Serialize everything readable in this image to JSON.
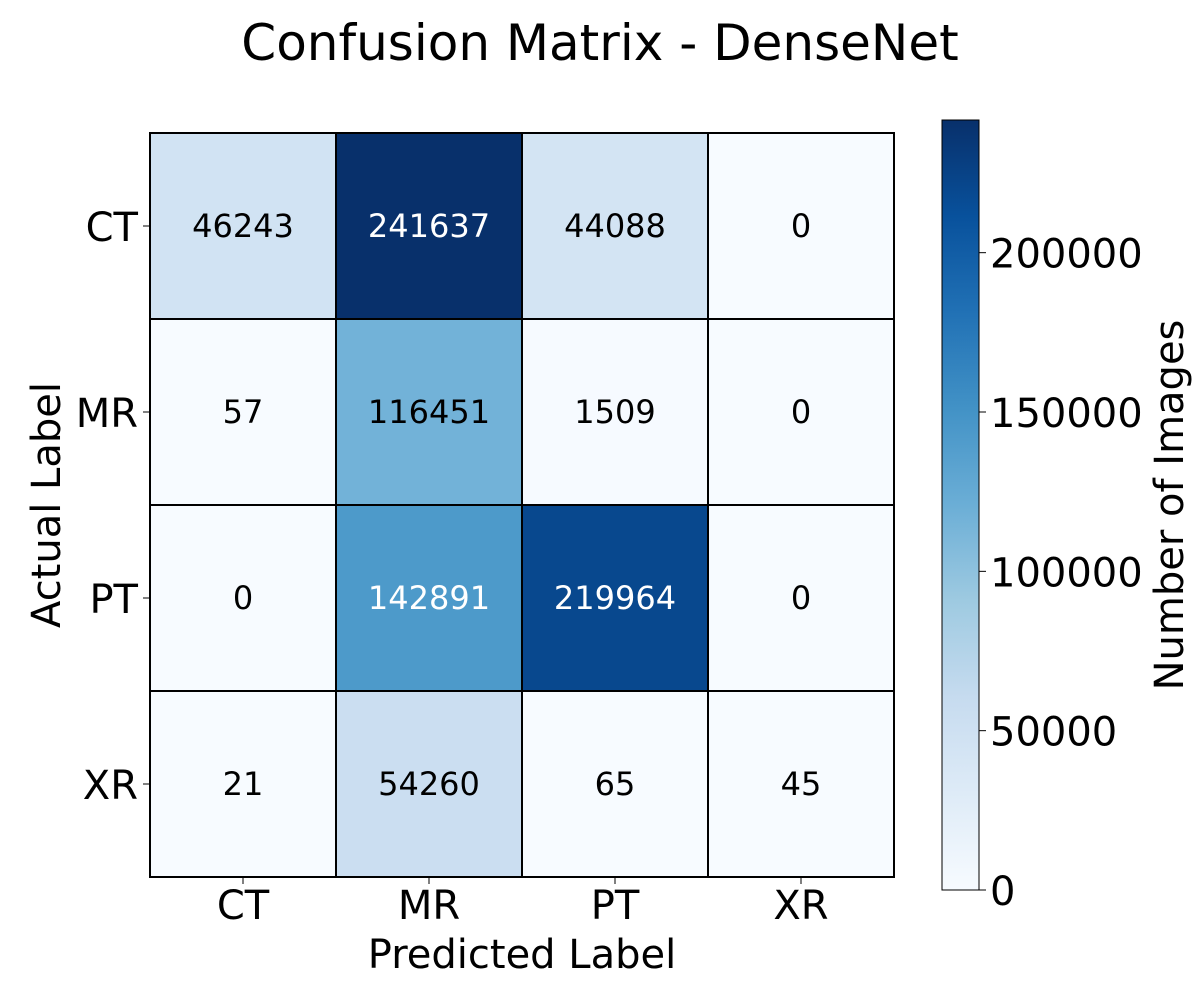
{
  "chart_data": {
    "type": "heatmap",
    "title": "Confusion Matrix - DenseNet",
    "xlabel": "Predicted Label",
    "ylabel": "Actual Label",
    "x_categories": [
      "CT",
      "MR",
      "PT",
      "XR"
    ],
    "y_categories": [
      "CT",
      "MR",
      "PT",
      "XR"
    ],
    "values": [
      [
        46243,
        241637,
        44088,
        0
      ],
      [
        57,
        116451,
        1509,
        0
      ],
      [
        0,
        142891,
        219964,
        0
      ],
      [
        21,
        54260,
        65,
        45
      ]
    ],
    "colorbar": {
      "label": "Number of Images",
      "range": [
        0,
        241637
      ],
      "ticks": [
        "0",
        "50000",
        "100000",
        "150000",
        "200000"
      ],
      "tick_values": [
        0,
        50000,
        100000,
        150000,
        200000
      ],
      "colormap": "Blues",
      "color_low": "#f7fbff",
      "color_high": "#08306b"
    },
    "grid_lines": true
  }
}
